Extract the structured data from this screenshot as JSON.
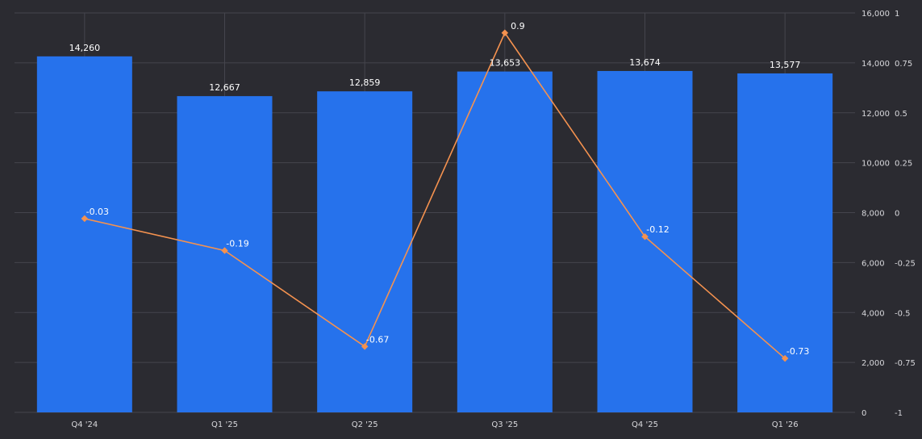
{
  "chart_data": {
    "type": "bar+line",
    "title": "",
    "categories": [
      "Q4 '24",
      "Q1 '25",
      "Q2 '25",
      "Q3 '25",
      "Q4 '25",
      "Q1 '26"
    ],
    "series": [
      {
        "type": "bar",
        "axis": "left",
        "values": [
          14260,
          12667,
          12859,
          13653,
          13674,
          13577
        ],
        "labels": [
          "14,260",
          "12,667",
          "12,859",
          "13,653",
          "13,674",
          "13,577"
        ],
        "color": "#2672ec"
      },
      {
        "type": "line",
        "axis": "right",
        "values": [
          -0.03,
          -0.19,
          -0.67,
          0.9,
          -0.12,
          -0.73
        ],
        "labels": [
          "-0.03",
          "-0.19",
          "-0.67",
          "0.9",
          "-0.12",
          "-0.73"
        ],
        "color": "#f5924f"
      }
    ],
    "y_left": {
      "range": [
        0,
        16000
      ],
      "ticks": [
        0,
        2000,
        4000,
        6000,
        8000,
        10000,
        12000,
        14000,
        16000
      ],
      "tick_labels": [
        "0",
        "2,000",
        "4,000",
        "6,000",
        "8,000",
        "10,000",
        "12,000",
        "14,000",
        "16,000"
      ]
    },
    "y_right": {
      "range": [
        -1,
        1
      ],
      "ticks": [
        -1,
        -0.75,
        -0.5,
        -0.25,
        0,
        0.25,
        0.5,
        0.75,
        1
      ],
      "tick_labels": [
        "-1",
        "-0.75",
        "-0.5",
        "-0.25",
        "0",
        "0.25",
        "0.5",
        "0.75",
        "1"
      ]
    },
    "grid": true,
    "background": "#2b2b31"
  }
}
